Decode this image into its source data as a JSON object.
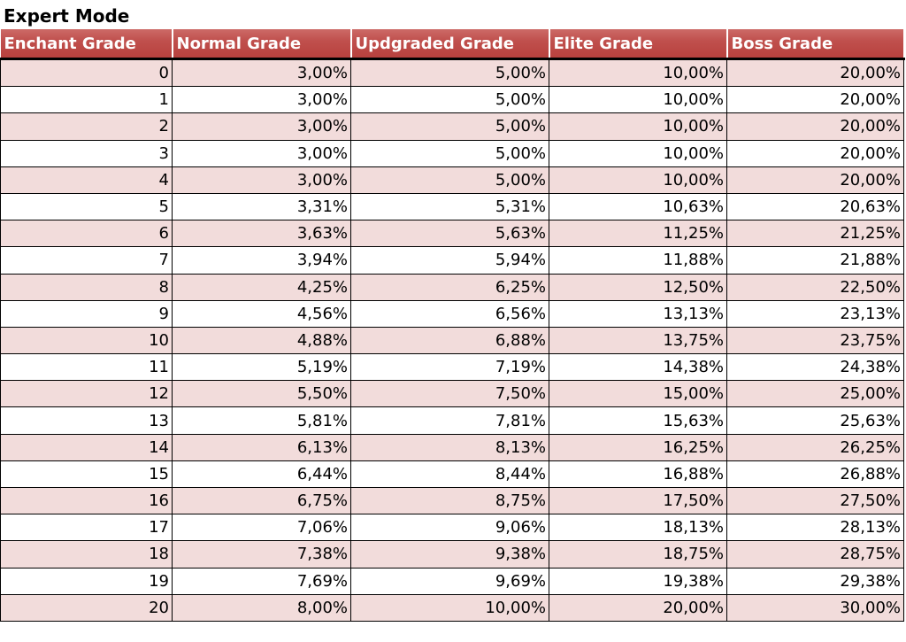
{
  "title": "Expert Mode",
  "table": {
    "header": [
      "Enchant Grade",
      "Normal Grade",
      "Updgraded Grade",
      "Elite Grade",
      "Boss Grade"
    ],
    "rows": [
      [
        "0",
        "3,00%",
        "5,00%",
        "10,00%",
        "20,00%"
      ],
      [
        "1",
        "3,00%",
        "5,00%",
        "10,00%",
        "20,00%"
      ],
      [
        "2",
        "3,00%",
        "5,00%",
        "10,00%",
        "20,00%"
      ],
      [
        "3",
        "3,00%",
        "5,00%",
        "10,00%",
        "20,00%"
      ],
      [
        "4",
        "3,00%",
        "5,00%",
        "10,00%",
        "20,00%"
      ],
      [
        "5",
        "3,31%",
        "5,31%",
        "10,63%",
        "20,63%"
      ],
      [
        "6",
        "3,63%",
        "5,63%",
        "11,25%",
        "21,25%"
      ],
      [
        "7",
        "3,94%",
        "5,94%",
        "11,88%",
        "21,88%"
      ],
      [
        "8",
        "4,25%",
        "6,25%",
        "12,50%",
        "22,50%"
      ],
      [
        "9",
        "4,56%",
        "6,56%",
        "13,13%",
        "23,13%"
      ],
      [
        "10",
        "4,88%",
        "6,88%",
        "13,75%",
        "23,75%"
      ],
      [
        "11",
        "5,19%",
        "7,19%",
        "14,38%",
        "24,38%"
      ],
      [
        "12",
        "5,50%",
        "7,50%",
        "15,00%",
        "25,00%"
      ],
      [
        "13",
        "5,81%",
        "7,81%",
        "15,63%",
        "25,63%"
      ],
      [
        "14",
        "6,13%",
        "8,13%",
        "16,25%",
        "26,25%"
      ],
      [
        "15",
        "6,44%",
        "8,44%",
        "16,88%",
        "26,88%"
      ],
      [
        "16",
        "6,75%",
        "8,75%",
        "17,50%",
        "27,50%"
      ],
      [
        "17",
        "7,06%",
        "9,06%",
        "18,13%",
        "28,13%"
      ],
      [
        "18",
        "7,38%",
        "9,38%",
        "18,75%",
        "28,75%"
      ],
      [
        "19",
        "7,69%",
        "9,69%",
        "19,38%",
        "29,38%"
      ],
      [
        "20",
        "8,00%",
        "10,00%",
        "20,00%",
        "30,00%"
      ]
    ]
  }
}
